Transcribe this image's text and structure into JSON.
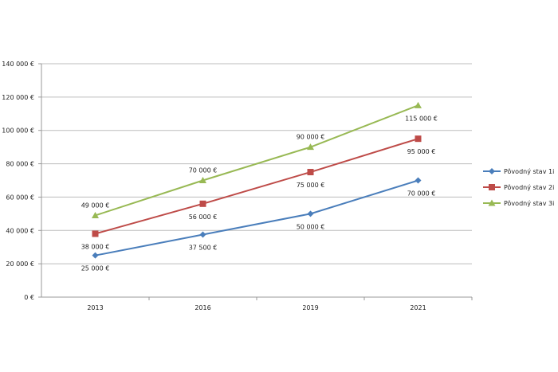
{
  "chart_data": {
    "type": "line",
    "categories": [
      "2013",
      "2016",
      "2019",
      "2021"
    ],
    "ylim": [
      0,
      140000
    ],
    "yticks": [
      0,
      20000,
      40000,
      60000,
      80000,
      100000,
      120000,
      140000
    ],
    "ytick_labels": [
      "0 €",
      "20 000 €",
      "40 000 €",
      "60 000 €",
      "80 000 €",
      "100 000 €",
      "120 000 €",
      "140 000 €"
    ],
    "grid": true,
    "legend": "right",
    "series": [
      {
        "name": "Pôvodný stav 1i",
        "values": [
          25000,
          37500,
          50000,
          70000
        ],
        "labels": [
          "25 000 €",
          "37 500 €",
          "50 000 €",
          "70 000 €"
        ],
        "color": "#4a7ebb",
        "marker": "diamond"
      },
      {
        "name": "Pôvodný stav 2i",
        "values": [
          38000,
          56000,
          75000,
          95000
        ],
        "labels": [
          "38 000 €",
          "56 000 €",
          "75 000 €",
          "95 000 €"
        ],
        "color": "#be4b48",
        "marker": "square"
      },
      {
        "name": "Pôvodný stav 3i",
        "values": [
          49000,
          70000,
          90000,
          115000
        ],
        "labels": [
          "49 000 €",
          "70 000 €",
          "90 000 €",
          "115 000 €"
        ],
        "color": "#98b954",
        "marker": "triangle"
      }
    ]
  }
}
